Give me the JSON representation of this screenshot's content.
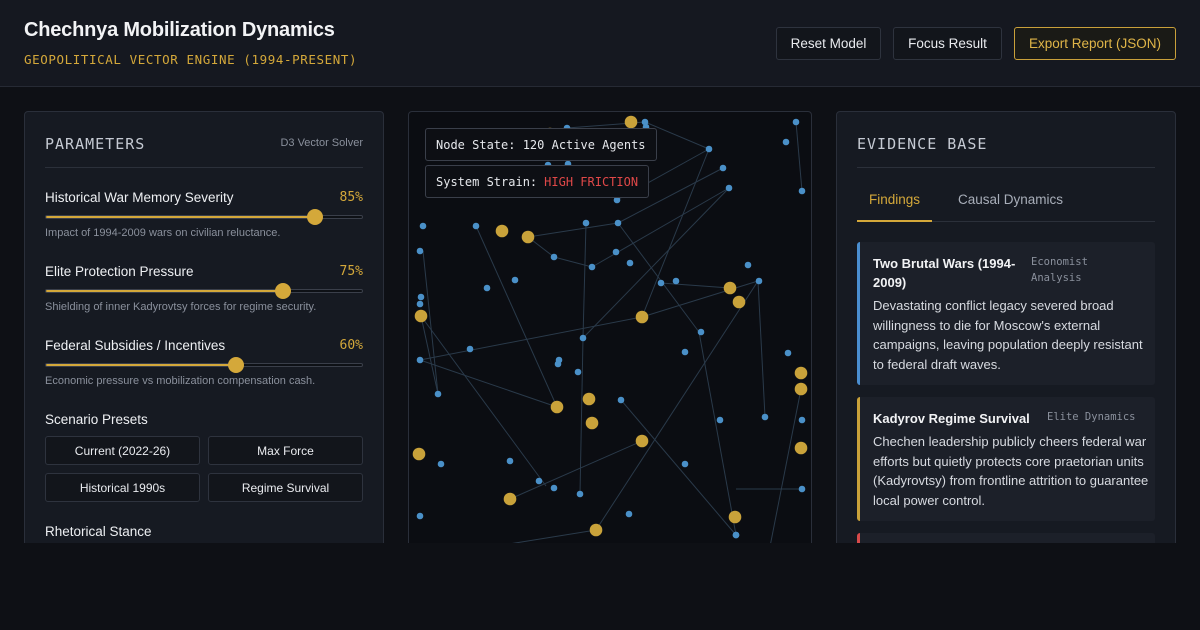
{
  "header": {
    "title": "Chechnya Mobilization Dynamics",
    "subtitle": "GEOPOLITICAL VECTOR ENGINE (1994-PRESENT)",
    "buttons": {
      "reset": "Reset Model",
      "focus": "Focus Result",
      "export": "Export Report (JSON)"
    }
  },
  "parameters": {
    "heading": "PARAMETERS",
    "solver": "D3 Vector Solver",
    "sliders": [
      {
        "label": "Historical War Memory Severity",
        "value_text": "85%",
        "value": 0.85,
        "desc": "Impact of 1994-2009 wars on civilian reluctance."
      },
      {
        "label": "Elite Protection Pressure",
        "value_text": "75%",
        "value": 0.75,
        "desc": "Shielding of inner Kadyrovtsy forces for regime security."
      },
      {
        "label": "Federal Subsidies / Incentives",
        "value_text": "60%",
        "value": 0.6,
        "desc": "Economic pressure vs mobilization compensation cash."
      }
    ],
    "presets_label": "Scenario Presets",
    "presets": [
      "Current (2022-26)",
      "Max Force",
      "Historical 1990s",
      "Regime Survival"
    ],
    "rhetoric_label": "Rhetorical Stance"
  },
  "graph": {
    "node_state": "Node State: 120 Active Agents",
    "strain_label": "System Strain:",
    "strain_value": "HIGH FRICTION",
    "colors": {
      "agent": "#4a90c8",
      "hub": "#c9a23a",
      "edge": "#2a3a4a"
    }
  },
  "evidence": {
    "heading": "EVIDENCE BASE",
    "tabs": [
      "Findings",
      "Causal Dynamics"
    ],
    "cards": [
      {
        "title": "Two Brutal Wars (1994-2009)",
        "tag": "Economist Analysis",
        "body": "Devastating conflict legacy severed broad willingness to die for Moscow's external campaigns, leaving population deeply resistant to federal draft waves.",
        "color": "#4a8ed0"
      },
      {
        "title": "Kadyrov Regime Survival",
        "tag": "Elite Dynamics",
        "body": "Chechen leadership publicly cheers federal war efforts but quietly protects core praetorian units (Kadyrovtsy) from frontline attrition to guarantee local power control.",
        "color": "#c9a23a"
      }
    ]
  }
}
